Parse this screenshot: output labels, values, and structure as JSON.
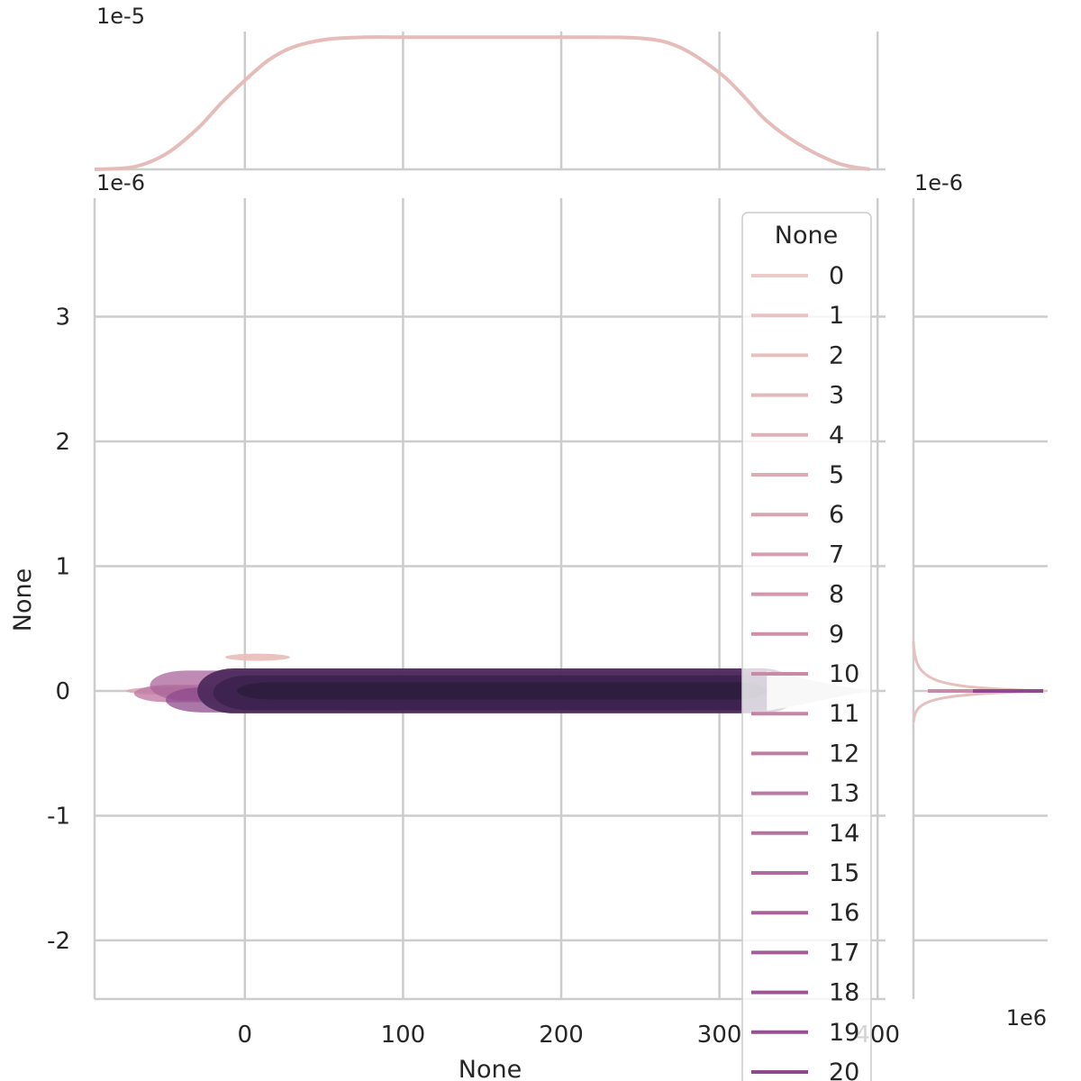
{
  "chart_data": {
    "type": "kde-joint",
    "main": {
      "xlabel": "None",
      "ylabel": "None",
      "x_ticks": [
        "0",
        "100",
        "200",
        "300",
        "400"
      ],
      "x_tick_values": [
        0,
        100,
        200,
        300,
        400
      ],
      "y_ticks": [
        "-2",
        "-1",
        "0",
        "1",
        "2",
        "3"
      ],
      "y_tick_values": [
        -2,
        -1,
        0,
        1,
        2,
        3
      ],
      "y_offset_label": "1e-6",
      "xlim": [
        -95,
        405
      ],
      "ylim": [
        -2.47,
        3.95
      ],
      "grid": true
    },
    "top_marginal": {
      "offset_label": "1e-5",
      "curve_x": [
        -95,
        -70,
        -50,
        -30,
        -15,
        0,
        15,
        30,
        50,
        75,
        100,
        150,
        200,
        250,
        275,
        300,
        315,
        330,
        350,
        375,
        395
      ],
      "curve_y": [
        0.0,
        0.05,
        0.3,
        0.8,
        1.3,
        1.75,
        2.15,
        2.4,
        2.55,
        2.6,
        2.6,
        2.6,
        2.6,
        2.58,
        2.4,
        1.9,
        1.45,
        0.95,
        0.5,
        0.12,
        0.0
      ],
      "ylim": [
        0,
        2.8
      ]
    },
    "right_marginal": {
      "y_offset_label": "1e-6",
      "x_offset_label": "1e6"
    },
    "legend": {
      "title": "None",
      "placement": "top-right",
      "entries": [
        "0",
        "1",
        "2",
        "3",
        "4",
        "5",
        "6",
        "7",
        "8",
        "9",
        "10",
        "11",
        "12",
        "13",
        "14",
        "15",
        "16",
        "17",
        "18",
        "19",
        "20"
      ]
    },
    "series_colors": [
      "#eccbc7",
      "#e9c3c2",
      "#e7c0bd",
      "#e3b9ba",
      "#e0b1b5",
      "#dcacb3",
      "#d8a4b0",
      "#d49eaf",
      "#d197ac",
      "#cd90a9",
      "#c98aa8",
      "#c584a6",
      "#c07ca4",
      "#bb78a2",
      "#b6719f",
      "#b06a9d",
      "#aa6399",
      "#a35d96",
      "#9c5693",
      "#955090",
      "#8e4a8c"
    ],
    "dense_colors": [
      "#4d2b5d",
      "#3d2350",
      "#2d1e3e"
    ],
    "grid_color": "#cccccc",
    "axis_color": "#cccccc"
  }
}
